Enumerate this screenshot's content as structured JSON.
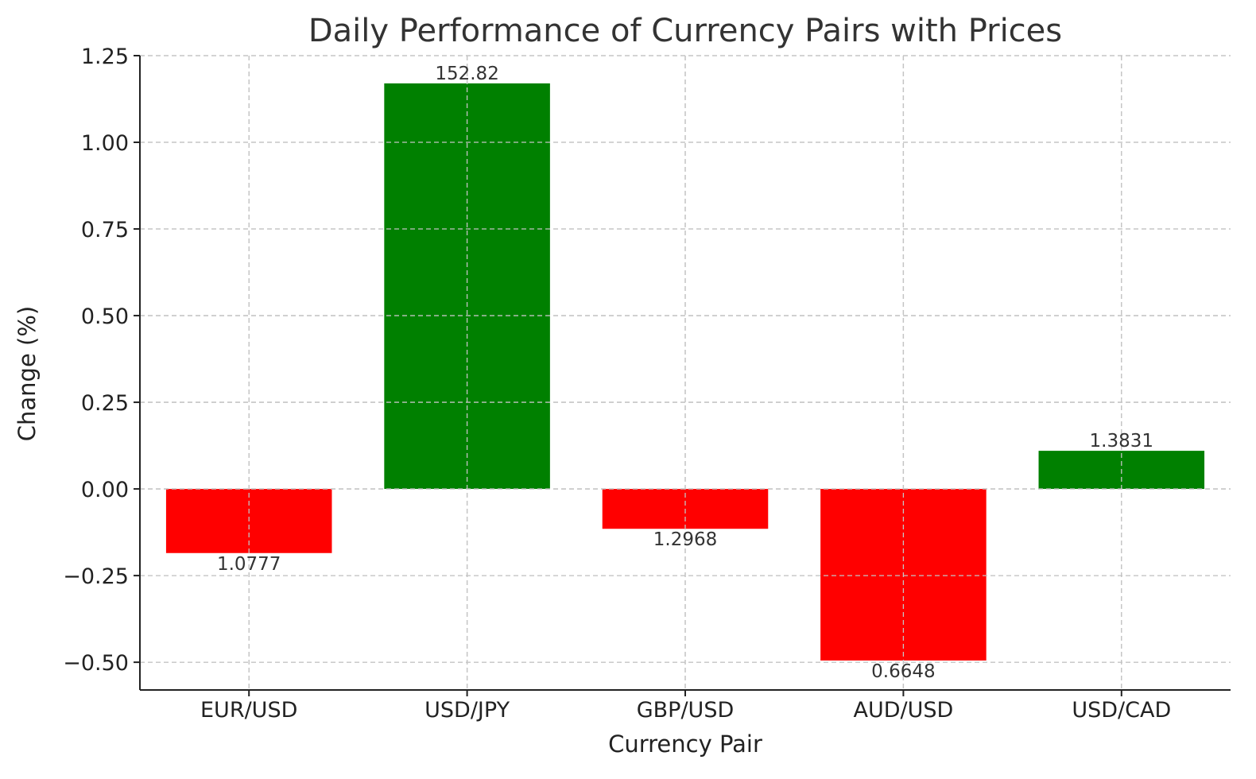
{
  "chart_data": {
    "type": "bar",
    "title": "Daily Performance of Currency Pairs with Prices",
    "xlabel": "Currency Pair",
    "ylabel": "Change (%)",
    "categories": [
      "EUR/USD",
      "USD/JPY",
      "GBP/USD",
      "AUD/USD",
      "USD/CAD"
    ],
    "values": [
      -0.185,
      1.17,
      -0.115,
      -0.495,
      0.11
    ],
    "price_labels": [
      "1.0777",
      "152.82",
      "1.2968",
      "0.6648",
      "1.3831"
    ],
    "bar_colors": [
      "#ff0000",
      "#008000",
      "#ff0000",
      "#ff0000",
      "#008000"
    ],
    "positive_color": "#008000",
    "negative_color": "#ff0000",
    "ylim": [
      -0.58,
      1.25
    ],
    "yticks": [
      1.25,
      1.0,
      0.75,
      0.5,
      0.25,
      0.0,
      -0.25,
      -0.5
    ],
    "ytick_labels": [
      "1.25",
      "1.00",
      "0.75",
      "0.50",
      "0.25",
      "0.00",
      "−0.25",
      "−0.50"
    ],
    "grid": true,
    "legend": "none"
  }
}
